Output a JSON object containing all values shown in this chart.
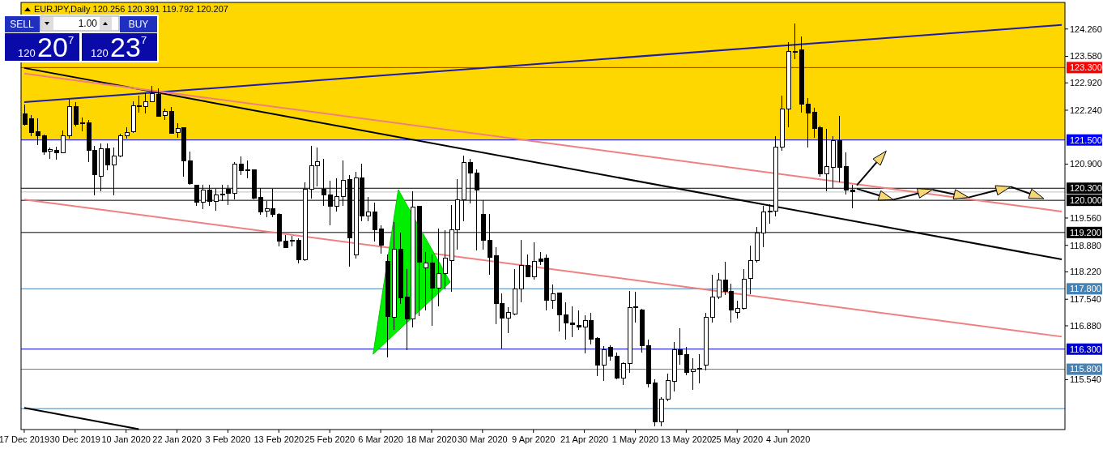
{
  "chart_data": {
    "type": "candlestick",
    "title": "EURJPY,Daily 120.256 120.391 119.792 120.207",
    "annotations": [
      "SELL",
      "1.00",
      "BUY",
      "120",
      "20",
      "7",
      "120",
      "23",
      "7"
    ],
    "color": "#000000",
    "categories": [
      "17 Dec 2019",
      null,
      null,
      null,
      null,
      null,
      null,
      null,
      "30 Dec 2019",
      null,
      null,
      null,
      null,
      null,
      null,
      null,
      "10 Jan 2020",
      null,
      null,
      null,
      null,
      null,
      null,
      null,
      "22 Jan 2020",
      null,
      null,
      null,
      null,
      null,
      null,
      null,
      "3 Feb 2020",
      null,
      null,
      null,
      null,
      null,
      null,
      null,
      "13 Feb 2020",
      null,
      null,
      null,
      null,
      null,
      null,
      null,
      "25 Feb 2020",
      null,
      null,
      null,
      null,
      null,
      null,
      null,
      "6 Mar 2020",
      null,
      null,
      null,
      null,
      null,
      null,
      null,
      "18 Mar 2020",
      null,
      null,
      null,
      null,
      null,
      null,
      null,
      "30 Mar 2020",
      null,
      null,
      null,
      null,
      null,
      null,
      null,
      "9 Apr 2020",
      null,
      null,
      null,
      null,
      null,
      null,
      null,
      "21 Apr 2020",
      null,
      null,
      null,
      null,
      null,
      null,
      null,
      "1 May 2020",
      null,
      null,
      null,
      null,
      null,
      null,
      null,
      "13 May 2020",
      null,
      null,
      null,
      null,
      null,
      null,
      null,
      "25 May 2020",
      null,
      null,
      null,
      null,
      null,
      null,
      null,
      "4 Jun 2020",
      null,
      null,
      null,
      null,
      null,
      null,
      null,
      null,
      null,
      null,
      null,
      null,
      null,
      null,
      null,
      null,
      null,
      null,
      null,
      null,
      null,
      null,
      null,
      null,
      null,
      null,
      null,
      null,
      null,
      null,
      null,
      null,
      null,
      null,
      null,
      null,
      null,
      null,
      null,
      null,
      null,
      null,
      null
    ],
    "ohlc": [
      [
        122.14,
        122.39,
        121.85,
        121.89
      ],
      [
        122.03,
        122.12,
        121.6,
        121.69
      ],
      [
        121.71,
        122.03,
        121.38,
        121.6
      ],
      [
        121.6,
        121.64,
        121.13,
        121.2
      ],
      [
        121.22,
        121.31,
        121.04,
        121.26
      ],
      [
        121.25,
        121.33,
        121.02,
        121.19
      ],
      [
        121.19,
        121.74,
        121.18,
        121.61
      ],
      [
        121.61,
        122.5,
        121.54,
        122.33
      ],
      [
        122.33,
        122.45,
        121.83,
        121.89
      ],
      [
        121.92,
        122.05,
        121.71,
        121.9
      ],
      [
        121.92,
        121.99,
        120.95,
        121.25
      ],
      [
        121.25,
        121.35,
        120.13,
        120.64
      ],
      [
        120.59,
        121.41,
        120.23,
        121.29
      ],
      [
        121.29,
        121.41,
        120.74,
        120.88
      ],
      [
        120.88,
        121.31,
        120.13,
        121.1
      ],
      [
        121.1,
        121.66,
        121.08,
        121.6
      ],
      [
        121.6,
        121.81,
        121.53,
        121.69
      ],
      [
        121.71,
        122.46,
        121.67,
        122.35
      ],
      [
        122.35,
        122.61,
        122.17,
        122.33
      ],
      [
        122.33,
        122.69,
        122.16,
        122.46
      ],
      [
        122.46,
        122.84,
        122.45,
        122.66
      ],
      [
        122.64,
        122.79,
        122.07,
        122.09
      ],
      [
        122.1,
        122.28,
        121.99,
        122.21
      ],
      [
        122.21,
        122.32,
        121.66,
        121.67
      ],
      [
        121.69,
        121.92,
        121.56,
        121.79
      ],
      [
        121.8,
        121.81,
        120.59,
        120.99
      ],
      [
        120.99,
        121.22,
        120.38,
        120.41
      ],
      [
        120.38,
        120.39,
        119.86,
        119.95
      ],
      [
        119.95,
        120.39,
        119.79,
        120.25
      ],
      [
        120.25,
        120.39,
        119.87,
        119.97
      ],
      [
        119.97,
        120.29,
        119.74,
        120.13
      ],
      [
        120.13,
        120.38,
        119.98,
        120.16
      ],
      [
        120.28,
        120.38,
        119.89,
        120.18
      ],
      [
        120.17,
        120.95,
        120.03,
        120.9
      ],
      [
        120.9,
        121.1,
        120.63,
        120.74
      ],
      [
        120.75,
        121.0,
        120.54,
        120.73
      ],
      [
        120.75,
        120.77,
        120.02,
        120.05
      ],
      [
        120.07,
        120.3,
        119.64,
        119.72
      ],
      [
        119.73,
        119.98,
        119.57,
        119.79
      ],
      [
        119.79,
        120.29,
        119.57,
        119.66
      ],
      [
        119.66,
        119.69,
        118.85,
        118.99
      ],
      [
        118.99,
        119.14,
        118.82,
        118.83
      ],
      [
        119.01,
        119.12,
        118.86,
        118.99
      ],
      [
        119.01,
        119.05,
        118.43,
        118.52
      ],
      [
        118.52,
        120.45,
        118.49,
        120.27
      ],
      [
        120.27,
        121.35,
        120.05,
        120.86
      ],
      [
        120.86,
        121.31,
        120.34,
        120.97
      ],
      [
        120.28,
        121.04,
        119.86,
        120.13
      ],
      [
        120.13,
        120.49,
        119.37,
        119.86
      ],
      [
        119.86,
        120.54,
        119.72,
        120.09
      ],
      [
        120.09,
        121.0,
        119.87,
        120.49
      ],
      [
        120.52,
        120.63,
        118.36,
        119.06
      ],
      [
        118.64,
        120.71,
        118.56,
        120.56
      ],
      [
        120.56,
        120.9,
        119.48,
        119.6
      ],
      [
        119.6,
        120.09,
        119.48,
        119.71
      ],
      [
        119.71,
        119.95,
        118.97,
        119.26
      ],
      [
        119.28,
        119.37,
        118.67,
        118.88
      ],
      [
        118.49,
        118.65,
        116.1,
        117.12
      ],
      [
        117.1,
        119.46,
        116.78,
        118.79
      ],
      [
        118.79,
        119.19,
        117.43,
        117.57
      ],
      [
        117.59,
        118.29,
        116.28,
        117.05
      ],
      [
        117.05,
        120.23,
        116.83,
        119.84
      ],
      [
        119.86,
        119.86,
        117.12,
        118.47
      ],
      [
        118.33,
        118.72,
        117.26,
        118.44
      ],
      [
        118.44,
        118.65,
        116.87,
        117.82
      ],
      [
        117.82,
        119.3,
        117.36,
        118.18
      ],
      [
        118.18,
        119.25,
        117.79,
        118.56
      ],
      [
        118.51,
        119.89,
        117.72,
        119.26
      ],
      [
        119.26,
        120.52,
        118.78,
        120.02
      ],
      [
        120.02,
        121.11,
        119.48,
        120.94
      ],
      [
        120.94,
        121.04,
        119.93,
        120.68
      ],
      [
        120.68,
        120.77,
        118.76,
        120.25
      ],
      [
        119.66,
        120.0,
        118.77,
        119.01
      ],
      [
        119.01,
        119.66,
        118.15,
        118.59
      ],
      [
        118.63,
        118.83,
        116.91,
        117.44
      ],
      [
        117.44,
        117.68,
        116.31,
        117.07
      ],
      [
        117.07,
        117.34,
        116.69,
        117.21
      ],
      [
        117.18,
        118.29,
        117.14,
        117.8
      ],
      [
        117.8,
        119.01,
        117.46,
        118.38
      ],
      [
        118.38,
        118.65,
        118.08,
        118.1
      ],
      [
        118.1,
        118.95,
        118.02,
        118.49
      ],
      [
        118.54,
        118.72,
        118.4,
        118.49
      ],
      [
        118.56,
        118.65,
        117.27,
        117.52
      ],
      [
        117.52,
        117.91,
        117.3,
        117.68
      ],
      [
        117.69,
        117.69,
        116.74,
        117.16
      ],
      [
        117.16,
        117.46,
        116.53,
        116.94
      ],
      [
        116.94,
        117.36,
        116.59,
        116.9
      ],
      [
        116.89,
        117.26,
        116.78,
        116.85
      ],
      [
        116.85,
        117.14,
        116.19,
        117.01
      ],
      [
        117.01,
        117.21,
        116.41,
        116.55
      ],
      [
        116.56,
        116.6,
        115.62,
        115.9
      ],
      [
        115.9,
        116.37,
        115.51,
        116.29
      ],
      [
        116.35,
        116.4,
        116.01,
        116.12
      ],
      [
        116.12,
        116.22,
        115.54,
        115.57
      ],
      [
        115.57,
        115.98,
        115.4,
        115.94
      ],
      [
        115.94,
        117.75,
        115.71,
        117.34
      ],
      [
        117.36,
        117.73,
        116.96,
        117.34
      ],
      [
        117.27,
        117.3,
        116.22,
        116.39
      ],
      [
        116.39,
        116.53,
        115.34,
        115.44
      ],
      [
        115.45,
        115.54,
        114.39,
        114.49
      ],
      [
        114.49,
        115.1,
        114.39,
        115.05
      ],
      [
        115.05,
        115.7,
        115.0,
        115.52
      ],
      [
        115.49,
        116.47,
        115.25,
        116.29
      ],
      [
        116.29,
        116.82,
        115.92,
        116.16
      ],
      [
        116.16,
        116.36,
        115.65,
        115.72
      ],
      [
        115.74,
        116.08,
        115.29,
        115.81
      ],
      [
        115.81,
        116.17,
        115.44,
        115.83
      ],
      [
        115.9,
        117.21,
        115.77,
        117.09
      ],
      [
        117.09,
        118.15,
        116.96,
        117.59
      ],
      [
        117.59,
        118.18,
        117.54,
        118.02
      ],
      [
        118.02,
        118.47,
        117.64,
        117.73
      ],
      [
        117.73,
        117.93,
        116.96,
        117.28
      ],
      [
        117.21,
        117.5,
        117.07,
        117.32
      ],
      [
        117.32,
        118.29,
        117.28,
        118.04
      ],
      [
        118.05,
        118.87,
        117.66,
        118.51
      ],
      [
        118.51,
        119.33,
        118.45,
        119.19
      ],
      [
        119.19,
        119.87,
        118.83,
        119.71
      ],
      [
        119.71,
        119.91,
        119.41,
        119.73
      ],
      [
        119.74,
        121.6,
        119.59,
        121.33
      ],
      [
        121.33,
        122.61,
        121.24,
        122.28
      ],
      [
        122.28,
        123.94,
        121.81,
        123.7
      ],
      [
        123.71,
        124.4,
        123.5,
        123.7
      ],
      [
        123.74,
        124.08,
        122.17,
        122.4
      ],
      [
        122.4,
        122.55,
        121.31,
        122.17
      ],
      [
        122.19,
        122.3,
        121.56,
        121.79
      ],
      [
        121.81,
        121.85,
        120.59,
        120.66
      ],
      [
        120.66,
        121.78,
        120.23,
        120.83
      ],
      [
        120.81,
        121.6,
        120.3,
        121.48
      ],
      [
        121.48,
        122.1,
        120.45,
        120.81
      ],
      [
        120.83,
        121.19,
        120.14,
        120.25
      ],
      [
        120.256,
        120.391,
        119.792,
        120.207
      ],
      null,
      null,
      null,
      null,
      null,
      null,
      null,
      null,
      null,
      null,
      null,
      null,
      null,
      null,
      null,
      null,
      null,
      null,
      null,
      null,
      null,
      null,
      null,
      null,
      null,
      null,
      null,
      null,
      null,
      null,
      null,
      null,
      null
    ],
    "series": [
      {
        "type": "line",
        "color": "#1c1ca8",
        "values": [
          122.44,
          null,
          null,
          null,
          null,
          null,
          null,
          null,
          null,
          null,
          null,
          null,
          null,
          null,
          null,
          null,
          null,
          null,
          null,
          null,
          null,
          null,
          null,
          null,
          null,
          null,
          null,
          null,
          null,
          null,
          null,
          null,
          null,
          null,
          null,
          null,
          null,
          null,
          null,
          null,
          null,
          null,
          null,
          null,
          null,
          null,
          null,
          null,
          null,
          null,
          null,
          null,
          null,
          null,
          null,
          null,
          null,
          null,
          null,
          null,
          null,
          null,
          null,
          null,
          null,
          null,
          null,
          null,
          null,
          null,
          null,
          null,
          null,
          null,
          null,
          null,
          null,
          null,
          null,
          null,
          null,
          null,
          null,
          null,
          null,
          null,
          null,
          null,
          null,
          null,
          null,
          null,
          null,
          null,
          null,
          null,
          null,
          null,
          null,
          null,
          null,
          null,
          null,
          null,
          null,
          null,
          null,
          null,
          null,
          null,
          null,
          null,
          null,
          null,
          null,
          null,
          null,
          null,
          null,
          null,
          null,
          null,
          null,
          null,
          null,
          null,
          null,
          null,
          null,
          null,
          null,
          null,
          null,
          null,
          null,
          null,
          null,
          null,
          null,
          null,
          null,
          null,
          null,
          null,
          null,
          null,
          null,
          null,
          null,
          null,
          null,
          null,
          null,
          null,
          null,
          null,
          null,
          null,
          null,
          null,
          null,
          null,
          null,
          124.36
        ]
      },
      {
        "type": "line",
        "color": "#000000",
        "values": [
          123.29,
          null,
          null,
          null,
          null,
          null,
          null,
          null,
          null,
          null,
          null,
          null,
          null,
          null,
          null,
          null,
          null,
          null,
          null,
          null,
          null,
          null,
          null,
          null,
          null,
          null,
          null,
          null,
          null,
          null,
          null,
          null,
          null,
          null,
          null,
          null,
          null,
          null,
          null,
          null,
          null,
          null,
          null,
          null,
          null,
          null,
          null,
          null,
          null,
          null,
          null,
          null,
          null,
          null,
          null,
          null,
          null,
          null,
          null,
          null,
          null,
          null,
          null,
          null,
          null,
          null,
          null,
          null,
          null,
          null,
          null,
          null,
          null,
          null,
          null,
          null,
          null,
          null,
          null,
          null,
          null,
          null,
          null,
          null,
          null,
          null,
          null,
          null,
          null,
          null,
          null,
          null,
          null,
          null,
          null,
          null,
          null,
          null,
          null,
          null,
          null,
          null,
          null,
          null,
          null,
          null,
          null,
          null,
          null,
          null,
          null,
          null,
          null,
          null,
          null,
          null,
          null,
          null,
          null,
          null,
          null,
          null,
          null,
          null,
          null,
          null,
          null,
          null,
          null,
          null,
          null,
          null,
          null,
          null,
          null,
          null,
          null,
          null,
          null,
          null,
          null,
          null,
          null,
          null,
          null,
          null,
          null,
          null,
          null,
          null,
          null,
          null,
          null,
          null,
          null,
          null,
          null,
          null,
          null,
          null,
          null,
          null,
          null,
          118.53
        ]
      },
      {
        "type": "line",
        "color": "#f08080",
        "values": [
          123.15,
          null,
          null,
          null,
          null,
          null,
          null,
          null,
          null,
          null,
          null,
          null,
          null,
          null,
          null,
          null,
          null,
          null,
          null,
          null,
          null,
          null,
          null,
          null,
          null,
          null,
          null,
          null,
          null,
          null,
          null,
          null,
          null,
          null,
          null,
          null,
          null,
          null,
          null,
          null,
          null,
          null,
          null,
          null,
          null,
          null,
          null,
          null,
          null,
          null,
          null,
          null,
          null,
          null,
          null,
          null,
          null,
          null,
          null,
          null,
          null,
          null,
          null,
          null,
          null,
          null,
          null,
          null,
          null,
          null,
          null,
          null,
          null,
          null,
          null,
          null,
          null,
          null,
          null,
          null,
          null,
          null,
          null,
          null,
          null,
          null,
          null,
          null,
          null,
          null,
          null,
          null,
          null,
          null,
          null,
          null,
          null,
          null,
          null,
          null,
          null,
          null,
          null,
          null,
          null,
          null,
          null,
          null,
          null,
          null,
          null,
          null,
          null,
          null,
          null,
          null,
          null,
          null,
          null,
          null,
          null,
          null,
          null,
          null,
          null,
          null,
          null,
          null,
          null,
          null,
          null,
          null,
          null,
          null,
          null,
          null,
          null,
          null,
          null,
          null,
          null,
          null,
          null,
          null,
          null,
          null,
          null,
          null,
          null,
          null,
          null,
          null,
          null,
          null,
          null,
          null,
          null,
          null,
          null,
          null,
          null,
          null,
          null,
          119.72
        ]
      },
      {
        "type": "line",
        "color": "#f08080",
        "values": [
          120.02,
          null,
          null,
          null,
          null,
          null,
          null,
          null,
          null,
          null,
          null,
          null,
          null,
          null,
          null,
          null,
          null,
          null,
          null,
          null,
          null,
          null,
          null,
          null,
          null,
          null,
          null,
          null,
          null,
          null,
          null,
          null,
          null,
          null,
          null,
          null,
          null,
          null,
          null,
          null,
          null,
          null,
          null,
          null,
          null,
          null,
          null,
          null,
          null,
          null,
          null,
          null,
          null,
          null,
          null,
          null,
          null,
          null,
          null,
          null,
          null,
          null,
          null,
          null,
          null,
          null,
          null,
          null,
          null,
          null,
          null,
          null,
          null,
          null,
          null,
          null,
          null,
          null,
          null,
          null,
          null,
          null,
          null,
          null,
          null,
          null,
          null,
          null,
          null,
          null,
          null,
          null,
          null,
          null,
          null,
          null,
          null,
          null,
          null,
          null,
          null,
          null,
          null,
          null,
          null,
          null,
          null,
          null,
          null,
          null,
          null,
          null,
          null,
          null,
          null,
          null,
          null,
          null,
          null,
          null,
          null,
          null,
          null,
          null,
          null,
          null,
          null,
          null,
          null,
          null,
          null,
          null,
          null,
          null,
          null,
          null,
          null,
          null,
          null,
          null,
          null,
          null,
          null,
          null,
          null,
          null,
          null,
          null,
          null,
          null,
          null,
          null,
          null,
          null,
          null,
          null,
          null,
          null,
          null,
          null,
          null,
          null,
          null,
          116.61
        ]
      },
      {
        "type": "line",
        "color": "#000000",
        "values": [
          114.84,
          null,
          null,
          null,
          null,
          null,
          null,
          null,
          null,
          null,
          null,
          null,
          null,
          null,
          null,
          null,
          null,
          null,
          114.31,
          null,
          null,
          null,
          null,
          null,
          null,
          null,
          null,
          null,
          null,
          null,
          null,
          null,
          null,
          null,
          null,
          null,
          null,
          null,
          null,
          null,
          null,
          null,
          null,
          null,
          null,
          null,
          null,
          null,
          null,
          null,
          null,
          null,
          null,
          null,
          null,
          null,
          null,
          null,
          null,
          null,
          null,
          null,
          null,
          null,
          null,
          null,
          null,
          null,
          null,
          null,
          null,
          null,
          null,
          null,
          null,
          null,
          null,
          null,
          null,
          null,
          null,
          null,
          null,
          null,
          null,
          null,
          null,
          null,
          null,
          null,
          null,
          null,
          null,
          null,
          null,
          null,
          null,
          null,
          null,
          null,
          null,
          null,
          null,
          null,
          null,
          null,
          null,
          null,
          null,
          null,
          null,
          null,
          null,
          null,
          null,
          null,
          null,
          null,
          null,
          null,
          null,
          null,
          null,
          null,
          null,
          null,
          null,
          null,
          null,
          null,
          null,
          null,
          null,
          null,
          null,
          null,
          null,
          null,
          null,
          null,
          null,
          null,
          null,
          null,
          null,
          null,
          null,
          null,
          null,
          null,
          null,
          null,
          null,
          null,
          null,
          null,
          null,
          null,
          null,
          null,
          null,
          null,
          null,
          null
        ]
      }
    ],
    "ylim": [
      114.3,
      124.92
    ],
    "yticks": [
      {
        "value": 124.26,
        "label": "124.260"
      },
      {
        "value": 123.58,
        "label": "123.580"
      },
      {
        "value": 122.92,
        "label": "122.920"
      },
      {
        "value": 122.24,
        "label": "122.240"
      },
      {
        "value": 120.9,
        "label": "120.900"
      },
      {
        "value": 119.56,
        "label": "119.560"
      },
      {
        "value": 118.88,
        "label": "118.880"
      },
      {
        "value": 118.22,
        "label": "118.220"
      },
      {
        "value": 117.54,
        "label": "117.540"
      },
      {
        "value": 116.88,
        "label": "116.880"
      },
      {
        "value": 115.54,
        "label": "115.540"
      }
    ],
    "bands": [
      {
        "axis": "y",
        "from": 121.5,
        "to": 124.92,
        "color": "#ffd700"
      }
    ],
    "ref_lines": [
      {
        "axis": "y",
        "value": 120.207,
        "label": null,
        "color": "#c0c0c0"
      },
      {
        "axis": "y",
        "value": 123.3,
        "label": "123.300",
        "color": "#ff0000"
      },
      {
        "axis": "y",
        "value": 121.5,
        "label": "121.500",
        "color": "#0000ff"
      },
      {
        "axis": "y",
        "value": 120.3,
        "label": "120.300",
        "color": "#000000"
      },
      {
        "axis": "y",
        "value": 120.0,
        "label": "120.000",
        "color": "#000000"
      },
      {
        "axis": "y",
        "value": 119.2,
        "label": "119.200",
        "color": "#000000"
      },
      {
        "axis": "y",
        "value": 117.8,
        "label": "117.800",
        "color": "#4682b4"
      },
      {
        "axis": "y",
        "value": 116.3,
        "label": "116.300",
        "color": "#0000cd"
      },
      {
        "axis": "y",
        "value": 115.8,
        "label": "115.800",
        "color": "#4682b4"
      },
      {
        "axis": "y",
        "value": 114.82,
        "label": null,
        "color": "#4682b4"
      }
    ]
  }
}
